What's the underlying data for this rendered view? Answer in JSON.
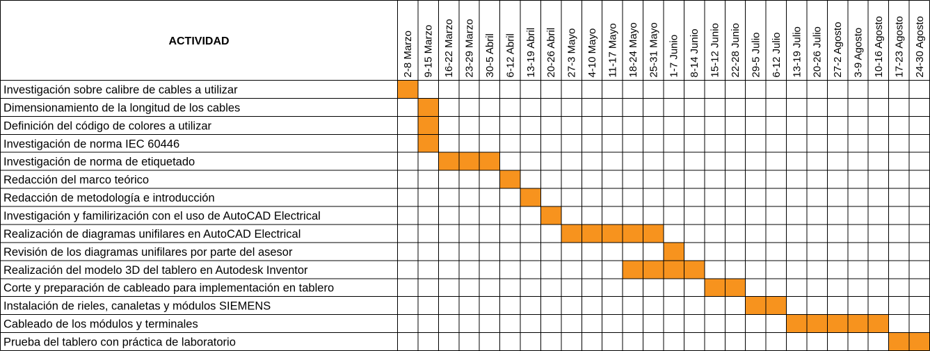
{
  "chart_data": {
    "type": "gantt",
    "header": "ACTIVIDAD",
    "weeks": [
      "2-8 Marzo",
      "9-15 Marzo",
      "16-22 Marzo",
      "23-29 Marzo",
      "30-5 Abril",
      "6-12 Abril",
      "13-19 Abril",
      "20-26 Abril",
      "27-3 Mayo",
      "4-10 Mayo",
      "11-17 Mayo",
      "18-24 Mayo",
      "25-31 Mayo",
      "1-7 Junio",
      "8-14 Junio",
      "15-12 Junio",
      "22-28 Junio",
      "29-5 Julio",
      "6-12 Julio",
      "13-19 Julio",
      "20-26 Julio",
      "27-2 Agosto",
      "3-9 Agosto",
      "10-16 Agosto",
      "17-23 Agosto",
      "24-30 Agosto"
    ],
    "tasks": [
      {
        "name": "Investigación sobre calibre de cables a utilizar",
        "weeks": [
          0
        ]
      },
      {
        "name": "Dimensionamiento de la longitud de los cables",
        "weeks": [
          1
        ]
      },
      {
        "name": "Definición del código de colores a utilizar",
        "weeks": [
          1
        ]
      },
      {
        "name": "Investigación de norma IEC 60446",
        "weeks": [
          1
        ]
      },
      {
        "name": "Investigación de norma de etiquetado",
        "weeks": [
          2,
          3,
          4
        ]
      },
      {
        "name": "Redacción del marco teórico",
        "weeks": [
          5
        ]
      },
      {
        "name": "Redacción de metodología e introducción",
        "weeks": [
          6
        ]
      },
      {
        "name": "Investigación y familirización con el uso de AutoCAD Electrical",
        "weeks": [
          7
        ]
      },
      {
        "name": "Realización de diagramas unifilares en AutoCAD Electrical",
        "weeks": [
          8,
          9,
          10,
          11,
          12
        ]
      },
      {
        "name": "Revisión de los diagramas unifilares por parte del asesor",
        "weeks": [
          13
        ]
      },
      {
        "name": "Realización del modelo 3D del tablero en Autodesk Inventor",
        "weeks": [
          11,
          12,
          13,
          14
        ]
      },
      {
        "name": "Corte y preparación de cableado para implementación en tablero",
        "weeks": [
          15,
          16
        ]
      },
      {
        "name": "Instalación de rieles, canaletas y módulos SIEMENS",
        "weeks": [
          17,
          18
        ]
      },
      {
        "name": "Cableado de los módulos y terminales",
        "weeks": [
          19,
          20,
          21,
          22,
          23
        ]
      },
      {
        "name": "Prueba del tablero con práctica de laboratorio",
        "weeks": [
          24,
          25
        ]
      }
    ],
    "colors": {
      "fill": "#f7931e",
      "grid": "#000000",
      "background": "#ffffff"
    }
  }
}
